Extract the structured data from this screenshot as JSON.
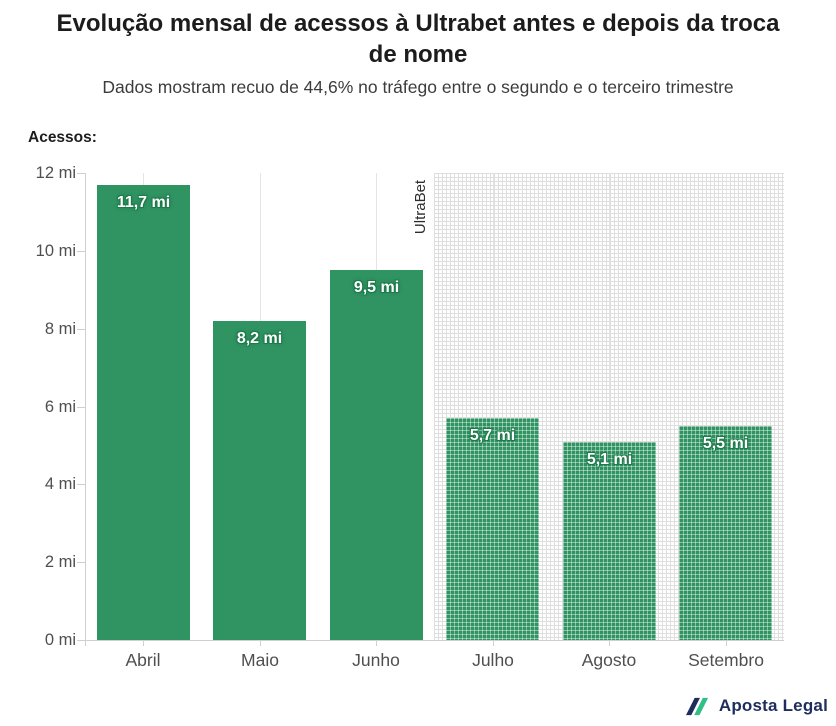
{
  "chart_data": {
    "type": "bar",
    "title": "Evolução mensal de acessos à Ultrabet antes e depois da troca de nome",
    "subtitle": "Dados mostram recuo de 44,6% no tráfego entre o segundo e o terceiro trimestre",
    "ylabel": "Acessos:",
    "categories": [
      "Abril",
      "Maio",
      "Junho",
      "Julho",
      "Agosto",
      "Setembro"
    ],
    "values": [
      11.7,
      8.2,
      9.5,
      5.7,
      5.1,
      5.5
    ],
    "value_labels": [
      "11,7 mi",
      "8,2 mi",
      "9,5 mi",
      "5,7 mi",
      "5,1 mi",
      "5,5 mi"
    ],
    "unit": "mi",
    "ylim": [
      0,
      12
    ],
    "ytick_step": 2,
    "yticks": [
      "0 mi",
      "2 mi",
      "4 mi",
      "6 mi",
      "8 mi",
      "10 mi",
      "12 mi"
    ],
    "bar_color": "#2f9462",
    "grid": "vertical gridline at each category center, left y-axis line with short ticks, bottom axis line",
    "legend": "none",
    "annotation": {
      "label": "UltraBet",
      "hatched_categories": [
        "Julho",
        "Agosto",
        "Setembro"
      ]
    }
  },
  "footer": {
    "brand": "Aposta Legal"
  },
  "colors": {
    "bar": "#2f9462",
    "label_halo": "#1c7a4b",
    "brand_navy": "#1e2d5e",
    "brand_green": "#2fc089"
  }
}
